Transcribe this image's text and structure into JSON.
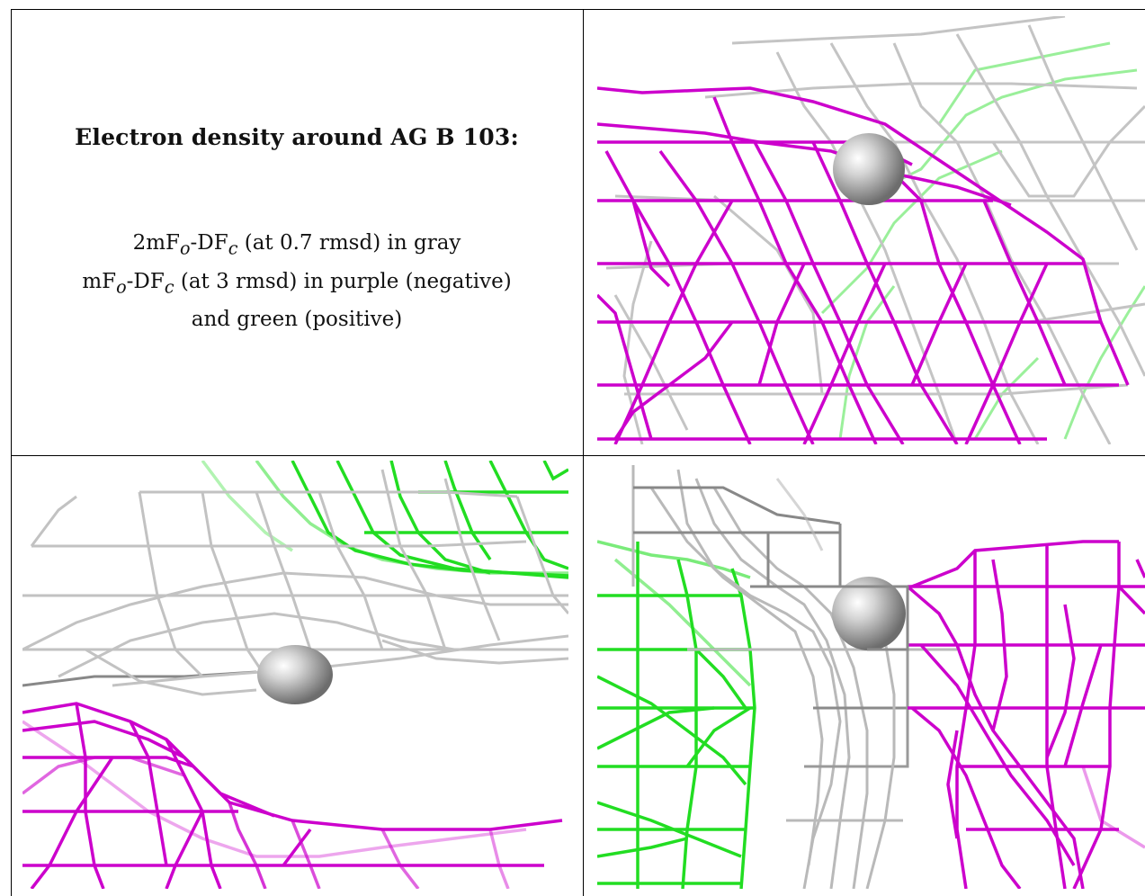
{
  "caption": {
    "title": "Electron density around AG B 103:",
    "line1": {
      "prefix": "2mF",
      "sub1": "o",
      "mid": "-DF",
      "sub2": "c",
      "suffix": " (at 0.7 rmsd) in gray"
    },
    "line2": {
      "prefix": "mF",
      "sub1": "o",
      "mid": "-DF",
      "sub2": "c",
      "suffix": " (at 3 rmsd) in purple (negative)"
    },
    "line3": "and green (positive)"
  },
  "colors": {
    "gray_mesh": "#b8b8b8",
    "gray_dark": "#7a7a7a",
    "purple_mesh": "#cc00cc",
    "green_mesh": "#22dd22",
    "atom": "#a9a9a9"
  },
  "panels": [
    {
      "id": "panel-top-right",
      "view": "1"
    },
    {
      "id": "panel-bottom-left",
      "view": "2"
    },
    {
      "id": "panel-bottom-right",
      "view": "3"
    }
  ]
}
